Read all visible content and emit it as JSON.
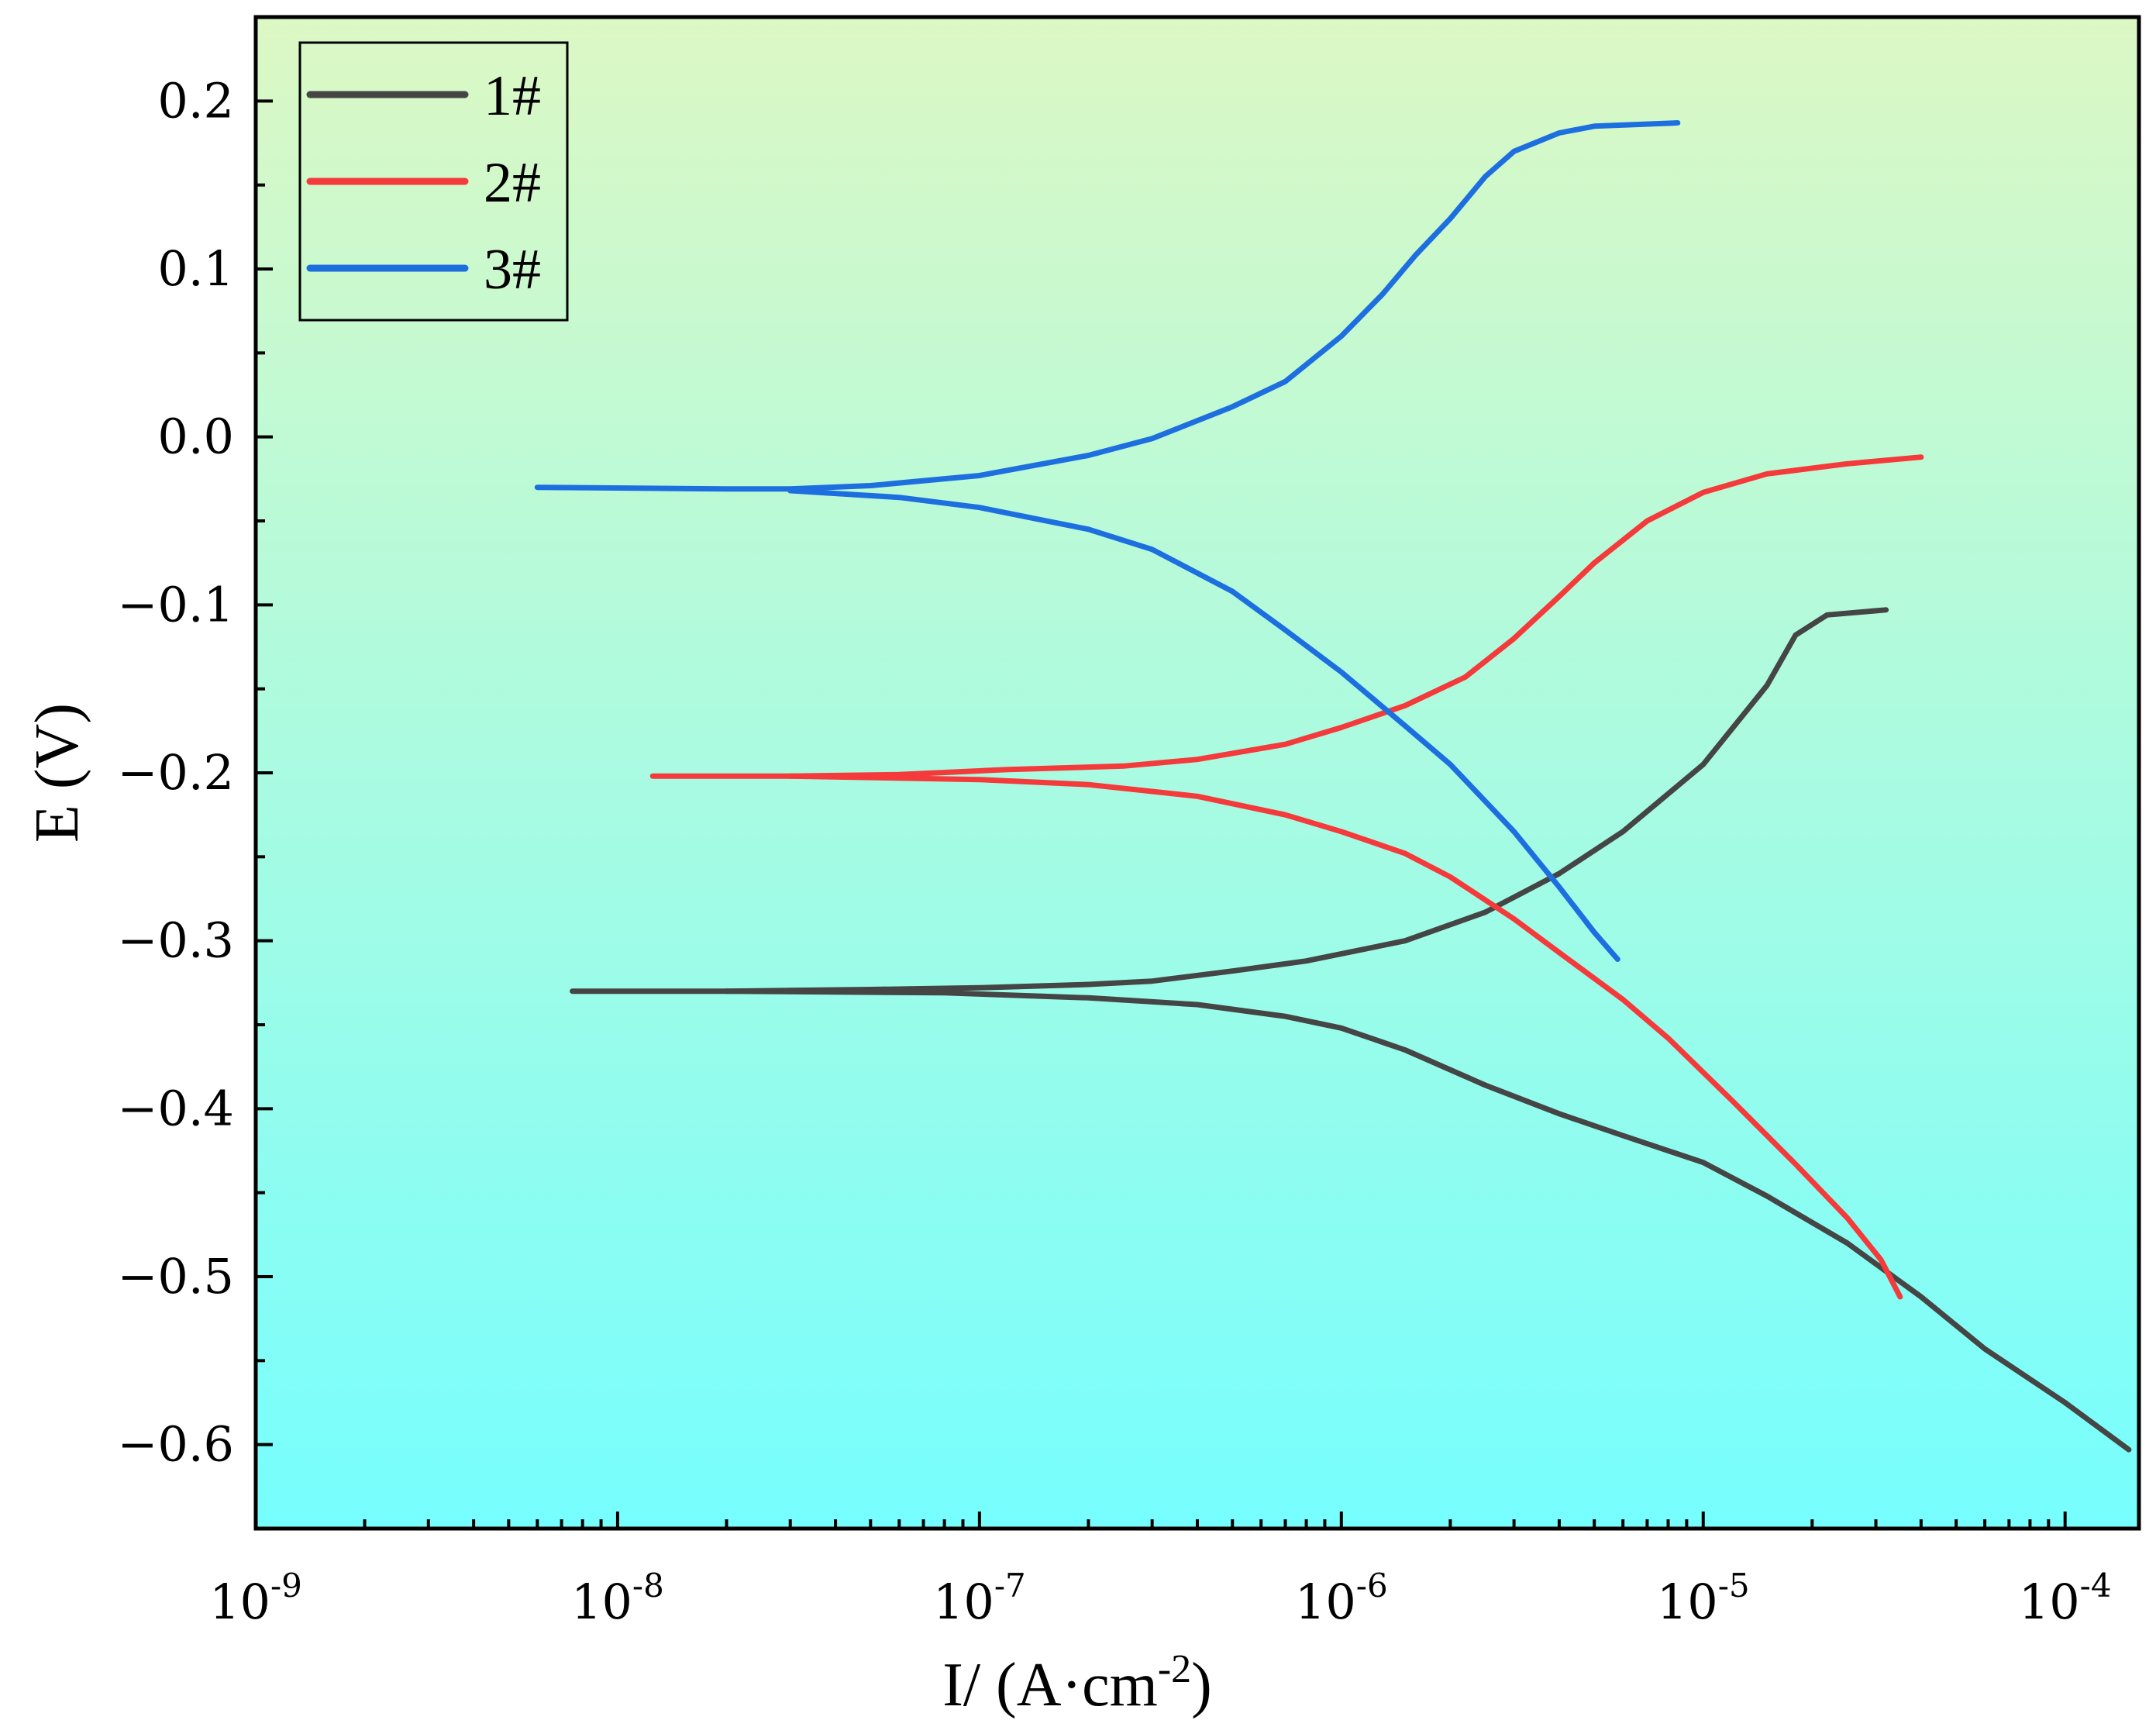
{
  "chart_data": {
    "type": "line",
    "title": "",
    "xlabel": "I/ (A·cm⁻²)",
    "xlabel_base": "I/ (A·cm",
    "xlabel_sup": "-2",
    "xlabel_end": ")",
    "ylabel": "E (V)",
    "xscale": "log",
    "xlim": [
      1e-09,
      0.00016
    ],
    "ylim": [
      -0.65,
      0.25
    ],
    "grid": false,
    "legend_position": "top-left",
    "background_gradient": {
      "top": "#DCF8C4",
      "bottom": "#76FEFE"
    },
    "x_ticks": [
      {
        "base": "10",
        "exp": "-9"
      },
      {
        "base": "10",
        "exp": "-8"
      },
      {
        "base": "10",
        "exp": "-7"
      },
      {
        "base": "10",
        "exp": "-6"
      },
      {
        "base": "10",
        "exp": "-5"
      },
      {
        "base": "10",
        "exp": "-4"
      }
    ],
    "y_ticks": [
      "0.2",
      "0.1",
      "0.0",
      "−0.1",
      "−0.2",
      "−0.3",
      "−0.4",
      "−0.5",
      "−0.6"
    ],
    "series": [
      {
        "name": "1#",
        "color": "#454545",
        "branches": [
          [
            [
              7.5e-09,
              -0.33
            ],
            [
              2e-08,
              -0.33
            ],
            [
              5e-08,
              -0.329
            ],
            [
              1e-07,
              -0.328
            ],
            [
              2e-07,
              -0.326
            ],
            [
              3e-07,
              -0.324
            ],
            [
              5e-07,
              -0.318
            ],
            [
              8e-07,
              -0.312
            ],
            [
              1.5e-06,
              -0.3
            ],
            [
              2.5e-06,
              -0.283
            ],
            [
              4e-06,
              -0.26
            ],
            [
              6e-06,
              -0.235
            ],
            [
              1e-05,
              -0.195
            ],
            [
              1.5e-05,
              -0.148
            ],
            [
              1.8e-05,
              -0.118
            ],
            [
              2.2e-05,
              -0.106
            ],
            [
              3.2e-05,
              -0.103
            ]
          ],
          [
            [
              2e-08,
              -0.33
            ],
            [
              8e-08,
              -0.331
            ],
            [
              2e-07,
              -0.334
            ],
            [
              4e-07,
              -0.338
            ],
            [
              7e-07,
              -0.345
            ],
            [
              1e-06,
              -0.352
            ],
            [
              1.5e-06,
              -0.365
            ],
            [
              2.5e-06,
              -0.386
            ],
            [
              4e-06,
              -0.403
            ],
            [
              6e-06,
              -0.416
            ],
            [
              1e-05,
              -0.432
            ],
            [
              1.5e-05,
              -0.452
            ],
            [
              2.5e-05,
              -0.48
            ],
            [
              4e-05,
              -0.512
            ],
            [
              6e-05,
              -0.543
            ],
            [
              0.0001,
              -0.575
            ],
            [
              0.00015,
              -0.603
            ]
          ]
        ]
      },
      {
        "name": "2#",
        "color": "#F43A3A",
        "branches": [
          [
            [
              1.25e-08,
              -0.202
            ],
            [
              3e-08,
              -0.202
            ],
            [
              6e-08,
              -0.201
            ],
            [
              1.2e-07,
              -0.198
            ],
            [
              2.5e-07,
              -0.196
            ],
            [
              4e-07,
              -0.192
            ],
            [
              7e-07,
              -0.183
            ],
            [
              1e-06,
              -0.173
            ],
            [
              1.5e-06,
              -0.16
            ],
            [
              2.2e-06,
              -0.143
            ],
            [
              3e-06,
              -0.12
            ],
            [
              4e-06,
              -0.095
            ],
            [
              5e-06,
              -0.075
            ],
            [
              7e-06,
              -0.05
            ],
            [
              1e-05,
              -0.033
            ],
            [
              1.5e-05,
              -0.022
            ],
            [
              2.5e-05,
              -0.016
            ],
            [
              4e-05,
              -0.012
            ]
          ],
          [
            [
              3e-08,
              -0.202
            ],
            [
              1e-07,
              -0.204
            ],
            [
              2e-07,
              -0.207
            ],
            [
              4e-07,
              -0.214
            ],
            [
              7e-07,
              -0.225
            ],
            [
              1e-06,
              -0.235
            ],
            [
              1.5e-06,
              -0.248
            ],
            [
              2e-06,
              -0.262
            ],
            [
              3e-06,
              -0.287
            ],
            [
              4e-06,
              -0.307
            ],
            [
              6e-06,
              -0.335
            ],
            [
              8e-06,
              -0.358
            ],
            [
              1.2e-05,
              -0.395
            ],
            [
              1.8e-05,
              -0.433
            ],
            [
              2.5e-05,
              -0.465
            ],
            [
              3.1e-05,
              -0.49
            ],
            [
              3.5e-05,
              -0.512
            ]
          ]
        ]
      },
      {
        "name": "3#",
        "color": "#1D6FE0",
        "branches": [
          [
            [
              6e-09,
              -0.03
            ],
            [
              2e-08,
              -0.031
            ],
            [
              3e-08,
              -0.031
            ],
            [
              5e-08,
              -0.029
            ],
            [
              1e-07,
              -0.023
            ],
            [
              2e-07,
              -0.011
            ],
            [
              3e-07,
              -0.001
            ],
            [
              5e-07,
              0.018
            ],
            [
              7e-07,
              0.033
            ],
            [
              1e-06,
              0.06
            ],
            [
              1.3e-06,
              0.085
            ],
            [
              1.6e-06,
              0.108
            ],
            [
              2e-06,
              0.13
            ],
            [
              2.5e-06,
              0.155
            ],
            [
              3e-06,
              0.17
            ],
            [
              4e-06,
              0.181
            ],
            [
              5e-06,
              0.185
            ],
            [
              8.5e-06,
              0.187
            ]
          ],
          [
            [
              3e-08,
              -0.032
            ],
            [
              6e-08,
              -0.036
            ],
            [
              1e-07,
              -0.042
            ],
            [
              2e-07,
              -0.055
            ],
            [
              3e-07,
              -0.067
            ],
            [
              5e-07,
              -0.092
            ],
            [
              7e-07,
              -0.115
            ],
            [
              1e-06,
              -0.14
            ],
            [
              1.5e-06,
              -0.172
            ],
            [
              2e-06,
              -0.195
            ],
            [
              3e-06,
              -0.235
            ],
            [
              4e-06,
              -0.268
            ],
            [
              5e-06,
              -0.295
            ],
            [
              5.8e-06,
              -0.311
            ]
          ]
        ]
      }
    ]
  }
}
